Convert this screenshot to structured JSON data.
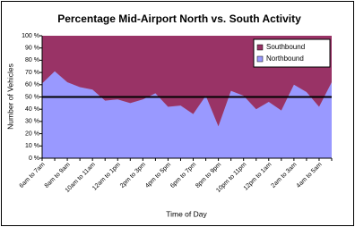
{
  "chart_data": {
    "type": "stacked_area",
    "title": "Percentage Mid-Airport North vs. South Activity",
    "x_label": "Time of Day",
    "y_label": "Number of Vehicles",
    "categories": [
      "6am to 7am",
      null,
      "8am to 9am",
      null,
      "10am to 11am",
      null,
      "12am to 1pm",
      null,
      "2pm to 3pm",
      null,
      "4pm to 5pm",
      null,
      "6pm to 7pm",
      null,
      "8pm to 9pm",
      null,
      "10pm to 11pm",
      null,
      "12pm to 1am",
      null,
      "2am to 3am",
      null,
      "4am to 5am",
      null
    ],
    "series": [
      {
        "name": "Northbound",
        "color": "#9999ff",
        "values": [
          61,
          71,
          62,
          58,
          56,
          47,
          48,
          45,
          48,
          53,
          42,
          43,
          36,
          51,
          26,
          55,
          51,
          40,
          46,
          39,
          60,
          54,
          42,
          62
        ]
      },
      {
        "name": "Southbound",
        "color": "#993366",
        "values": [
          39,
          29,
          38,
          42,
          44,
          53,
          52,
          55,
          52,
          47,
          58,
          57,
          64,
          49,
          74,
          45,
          49,
          60,
          54,
          61,
          40,
          46,
          58,
          38
        ]
      }
    ],
    "reference_line": 50,
    "ylim": [
      0,
      100
    ],
    "yticks": [
      {
        "value": 0,
        "label": "0 %"
      },
      {
        "value": 10,
        "label": "10 %"
      },
      {
        "value": 20,
        "label": "20 %"
      },
      {
        "value": 30,
        "label": "30 %"
      },
      {
        "value": 40,
        "label": "40 %"
      },
      {
        "value": 50,
        "label": "50 %"
      },
      {
        "value": 60,
        "label": "60 %"
      },
      {
        "value": 70,
        "label": "70 %"
      },
      {
        "value": 80,
        "label": "80 %"
      },
      {
        "value": 90,
        "label": "90 %"
      },
      {
        "value": 100,
        "label": "100 %"
      }
    ],
    "legend": "top-right"
  }
}
